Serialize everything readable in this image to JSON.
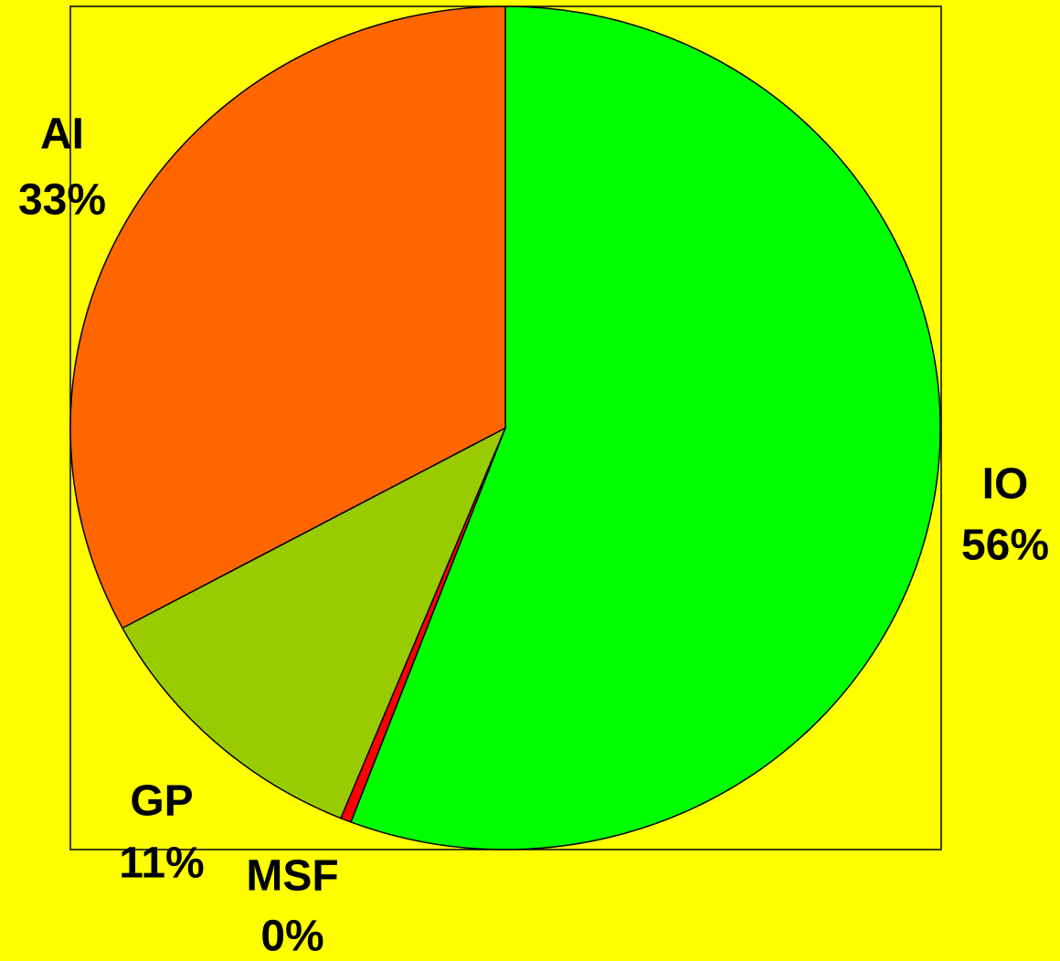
{
  "chart_data": {
    "type": "pie",
    "categories": [
      "IO",
      "MSF",
      "GP",
      "AI"
    ],
    "values": [
      56,
      0.4,
      11,
      33
    ],
    "value_labels": [
      "56%",
      "0%",
      "11%",
      "33%"
    ],
    "colors": [
      "#00ff00",
      "#ff0000",
      "#99cc00",
      "#ff6600"
    ],
    "start_angle": 0,
    "direction": "clockwise"
  }
}
